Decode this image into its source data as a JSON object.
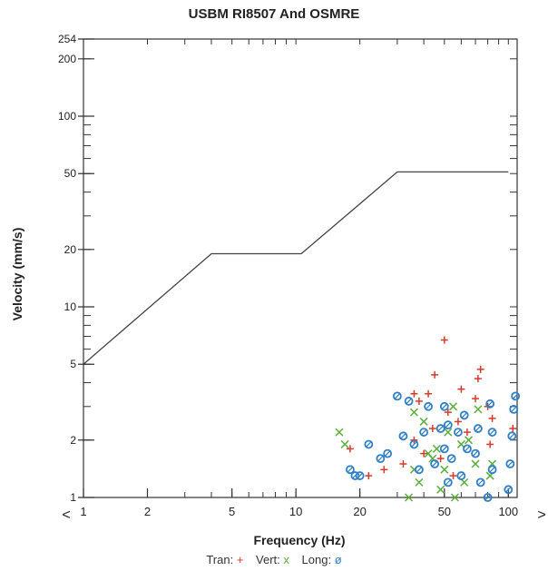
{
  "chart_data": {
    "type": "scatter",
    "title": "USBM RI8507 And OSMRE",
    "xlabel": "Frequency (Hz)",
    "ylabel": "Velocity (mm/s)",
    "x_scale": "log",
    "y_scale": "log",
    "xlim": [
      1,
      110
    ],
    "ylim": [
      1,
      254
    ],
    "x_ticks": [
      "1",
      "2",
      "5",
      "10",
      "20",
      "50",
      "100"
    ],
    "y_ticks": [
      "1",
      "2",
      "5",
      "10",
      "20",
      "50",
      "100",
      "200",
      "254"
    ],
    "x_left_marker": "<",
    "x_right_marker": ">",
    "limit_line": [
      [
        1,
        5
      ],
      [
        4,
        19
      ],
      [
        10.6,
        19
      ],
      [
        30,
        51
      ],
      [
        100,
        51
      ]
    ],
    "series": [
      {
        "name": "Tran",
        "symbol": "+",
        "color": "#d73a2a",
        "points": [
          [
            18,
            1.8
          ],
          [
            22,
            1.3
          ],
          [
            26,
            1.4
          ],
          [
            32,
            1.5
          ],
          [
            36,
            2.0
          ],
          [
            36,
            3.5
          ],
          [
            38,
            3.2
          ],
          [
            40,
            1.7
          ],
          [
            42,
            3.5
          ],
          [
            44,
            2.3
          ],
          [
            45,
            4.4
          ],
          [
            48,
            1.6
          ],
          [
            50,
            6.7
          ],
          [
            52,
            2.8
          ],
          [
            55,
            1.3
          ],
          [
            58,
            2.5
          ],
          [
            60,
            3.7
          ],
          [
            64,
            2.2
          ],
          [
            70,
            3.3
          ],
          [
            72,
            4.2
          ],
          [
            74,
            4.7
          ],
          [
            80,
            3.0
          ],
          [
            82,
            1.9
          ],
          [
            84,
            2.6
          ],
          [
            105,
            2.3
          ]
        ]
      },
      {
        "name": "Vert",
        "symbol": "x",
        "color": "#5aae3a",
        "points": [
          [
            16,
            2.2
          ],
          [
            17,
            1.9
          ],
          [
            34,
            1.0
          ],
          [
            36,
            1.4
          ],
          [
            36,
            2.8
          ],
          [
            38,
            1.2
          ],
          [
            40,
            2.5
          ],
          [
            42,
            1.7
          ],
          [
            44,
            1.6
          ],
          [
            46,
            1.8
          ],
          [
            48,
            1.1
          ],
          [
            50,
            1.4
          ],
          [
            52,
            2.2
          ],
          [
            55,
            3.0
          ],
          [
            56,
            1.0
          ],
          [
            60,
            1.9
          ],
          [
            62,
            1.2
          ],
          [
            65,
            2.0
          ],
          [
            70,
            1.5
          ],
          [
            72,
            2.9
          ],
          [
            82,
            1.3
          ],
          [
            84,
            1.5
          ]
        ]
      },
      {
        "name": "Long",
        "symbol": "ø",
        "color": "#2f7fc6",
        "points": [
          [
            18,
            1.4
          ],
          [
            19,
            1.3
          ],
          [
            20,
            1.3
          ],
          [
            22,
            1.9
          ],
          [
            25,
            1.6
          ],
          [
            27,
            1.7
          ],
          [
            30,
            3.4
          ],
          [
            32,
            2.1
          ],
          [
            34,
            3.2
          ],
          [
            36,
            1.9
          ],
          [
            38,
            1.4
          ],
          [
            40,
            2.2
          ],
          [
            42,
            3.0
          ],
          [
            45,
            1.5
          ],
          [
            48,
            2.3
          ],
          [
            50,
            1.8
          ],
          [
            50,
            3.0
          ],
          [
            52,
            1.2
          ],
          [
            52,
            2.4
          ],
          [
            54,
            1.6
          ],
          [
            58,
            2.2
          ],
          [
            60,
            1.3
          ],
          [
            62,
            2.7
          ],
          [
            64,
            1.8
          ],
          [
            70,
            1.7
          ],
          [
            72,
            2.3
          ],
          [
            74,
            1.2
          ],
          [
            80,
            1.0
          ],
          [
            82,
            3.1
          ],
          [
            84,
            1.4
          ],
          [
            84,
            2.2
          ],
          [
            100,
            1.1
          ],
          [
            102,
            1.5
          ],
          [
            104,
            2.1
          ],
          [
            106,
            2.9
          ],
          [
            108,
            3.4
          ]
        ]
      }
    ],
    "legend": {
      "placement": "bottom",
      "items": [
        {
          "label": "Tran:",
          "marker": "+",
          "color": "#d73a2a"
        },
        {
          "label": "Vert:",
          "marker": "x",
          "color": "#5aae3a"
        },
        {
          "label": "Long:",
          "marker": "ø",
          "color": "#2f7fc6"
        }
      ]
    },
    "grid": false
  }
}
